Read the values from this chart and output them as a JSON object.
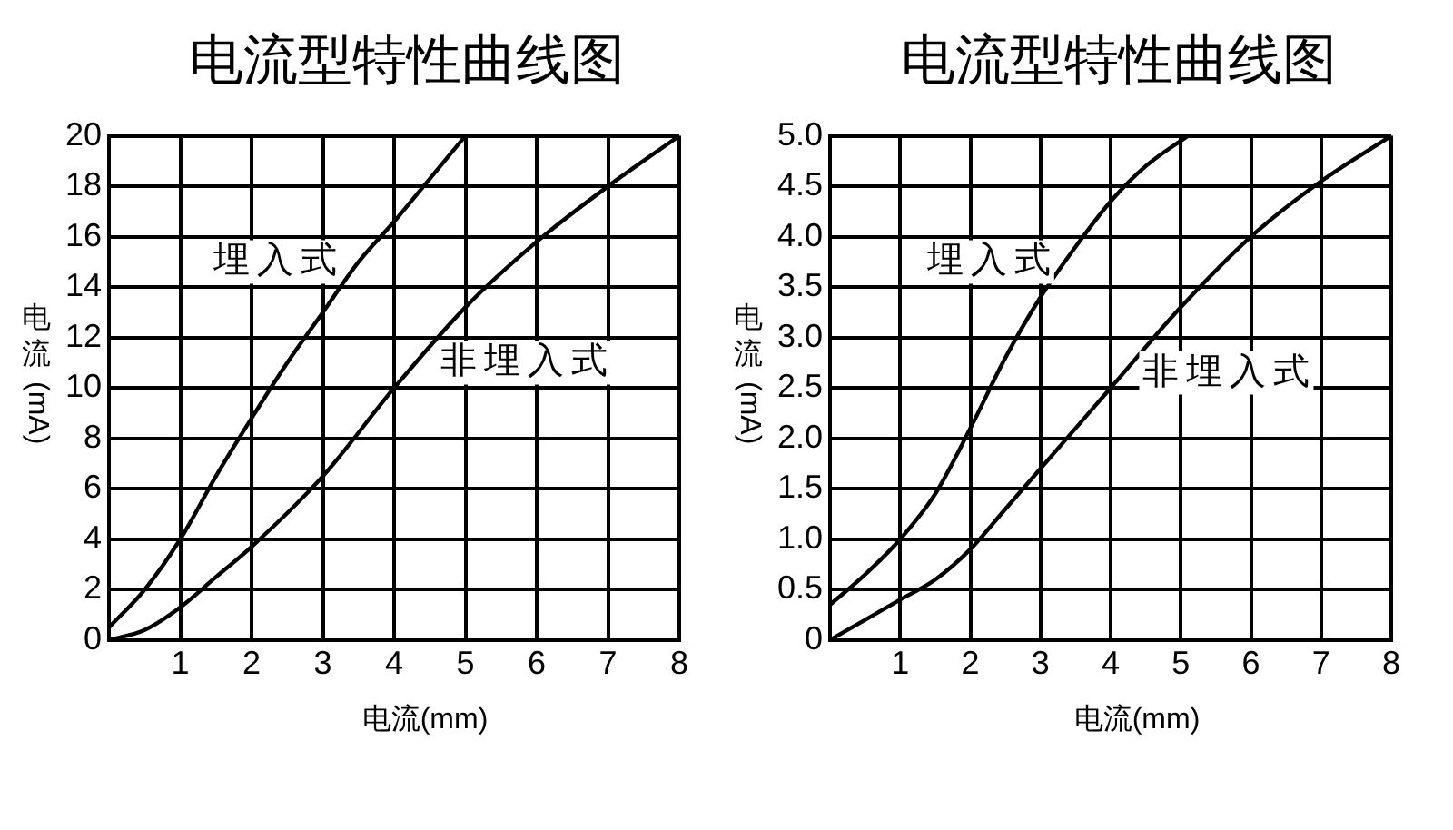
{
  "chart_data": [
    {
      "type": "line",
      "title": "电流型特性曲线图",
      "xlabel": "电流(mm)",
      "ylabel": "电流 (mA)",
      "xlim": [
        0,
        8
      ],
      "xticks": [
        1,
        2,
        3,
        4,
        5,
        6,
        7,
        8
      ],
      "ylim": [
        0,
        20
      ],
      "yticks": [
        0,
        2,
        4,
        6,
        8,
        10,
        12,
        14,
        16,
        18,
        20
      ],
      "grid": true,
      "legend": false,
      "marker": "none",
      "line_style": "solid",
      "series": [
        {
          "color": "#000000",
          "x": [
            0,
            0.5,
            1,
            1.5,
            2,
            2.5,
            3,
            3.5,
            4,
            4.5,
            5
          ],
          "values": [
            0.5,
            2,
            4,
            6.5,
            8.8,
            11,
            13,
            15,
            16.6,
            18.3,
            20
          ]
        },
        {
          "color": "#000000",
          "x": [
            0,
            0.5,
            1,
            1.5,
            2,
            3,
            4,
            5,
            6,
            7,
            8
          ],
          "values": [
            0,
            0.4,
            1.3,
            2.5,
            3.7,
            6.5,
            10,
            13.2,
            15.8,
            18,
            20
          ]
        }
      ],
      "annotations": [
        {
          "text": "埋入式",
          "x": 3.4,
          "y": 15
        },
        {
          "text": "非埋入式",
          "x": 4.4,
          "y": 11
        }
      ]
    },
    {
      "type": "line",
      "title": "电流型特性曲线图",
      "xlabel": "电流(mm)",
      "ylabel": "电流 (mA)",
      "xlim": [
        0,
        8
      ],
      "xticks": [
        1,
        2,
        3,
        4,
        5,
        6,
        7,
        8
      ],
      "ylim": [
        0,
        5
      ],
      "yticks": [
        0,
        {
          "value": 0.5,
          "label": "0.5"
        },
        {
          "value": 1,
          "label": "1.0"
        },
        {
          "value": 1.5,
          "label": "1.5"
        },
        {
          "value": 2,
          "label": "2.0"
        },
        {
          "value": 2.5,
          "label": "2.5"
        },
        {
          "value": 3,
          "label": "3.0"
        },
        {
          "value": 3.5,
          "label": "3.5"
        },
        {
          "value": 4,
          "label": "4.0"
        },
        {
          "value": 4.5,
          "label": "4.5"
        },
        {
          "value": 5,
          "label": "5.0"
        }
      ],
      "grid": true,
      "legend": false,
      "marker": "none",
      "line_style": "solid",
      "series": [
        {
          "color": "#000000",
          "x": [
            0,
            0.5,
            1,
            1.5,
            2,
            2.5,
            3,
            3.5,
            4,
            4.5,
            5.1
          ],
          "values": [
            0.35,
            0.65,
            1,
            1.45,
            2.1,
            2.8,
            3.4,
            3.9,
            4.35,
            4.7,
            5
          ]
        },
        {
          "color": "#000000",
          "x": [
            0,
            0.5,
            1,
            1.5,
            2,
            2.5,
            3,
            3.5,
            4,
            5,
            6,
            7,
            8
          ],
          "values": [
            0,
            0.2,
            0.4,
            0.6,
            0.9,
            1.3,
            1.7,
            2.1,
            2.5,
            3.3,
            4,
            4.55,
            5
          ]
        }
      ],
      "annotations": [
        {
          "text": "埋入式",
          "x": 3.35,
          "y": 3.75
        },
        {
          "text": "非埋入式",
          "x": 4.2,
          "y": 2.65
        }
      ]
    }
  ]
}
